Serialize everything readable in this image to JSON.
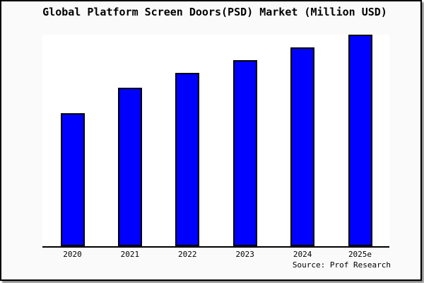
{
  "title": "Global Platform Screen Doors(PSD) Market (Million USD)",
  "source_note": "Source: Prof Research",
  "colors": {
    "bar_fill": "#0000fe",
    "bar_border": "#000000",
    "figure_bg": "#fafafa",
    "plot_bg": "#ffffff",
    "frame_border": "#000000",
    "text": "#000000"
  },
  "chart_data": {
    "type": "bar",
    "title": "Global Platform Screen Doors(PSD) Market (Million USD)",
    "categories": [
      "2020",
      "2021",
      "2022",
      "2023",
      "2024",
      "2025e"
    ],
    "values": [
      63,
      75,
      82,
      88,
      94,
      100
    ],
    "value_unit": "percent of tallest (2025e) bar; y-axis has no visible scale",
    "xlabel": "",
    "ylabel": "",
    "y_axis_visible": false,
    "gridlines": false,
    "legend": false,
    "annotations": [
      "Source: Prof Research"
    ]
  }
}
